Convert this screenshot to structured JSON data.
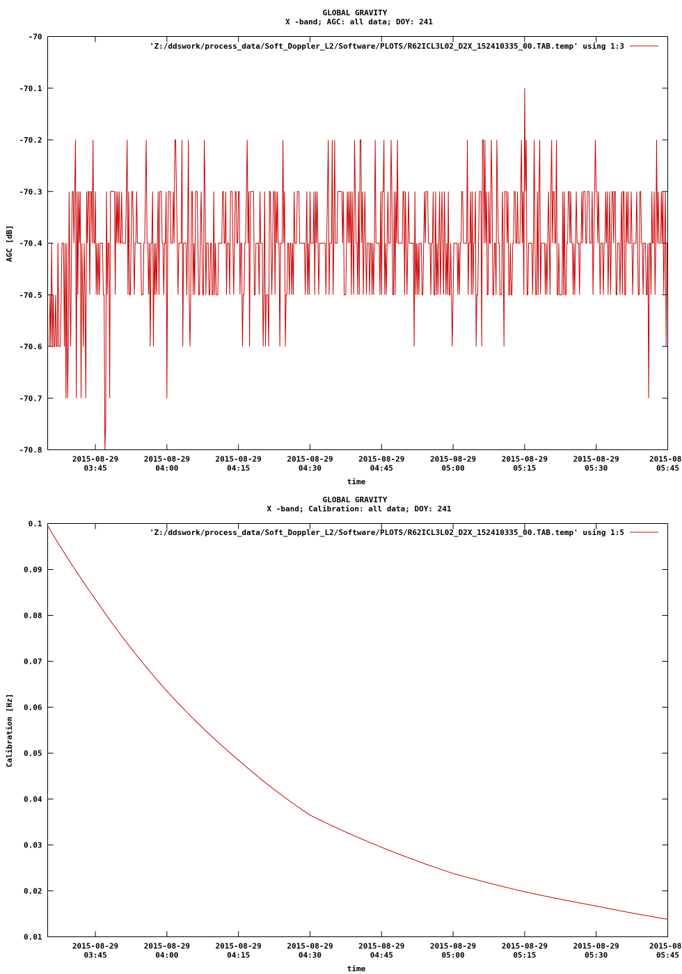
{
  "chart_data": [
    {
      "type": "line",
      "title": "GLOBAL GRAVITY",
      "subtitle": "X -band; AGC: all data; DOY: 241",
      "xlabel": "time",
      "ylabel": "AGC [dB]",
      "ylim": [
        -70.8,
        -70.0
      ],
      "yticks": [
        "-70",
        "-70.1",
        "-70.2",
        "-70.3",
        "-70.4",
        "-70.5",
        "-70.6",
        "-70.7",
        "-70.8"
      ],
      "ytick_values": [
        -70.0,
        -70.1,
        -70.2,
        -70.3,
        -70.4,
        -70.5,
        -70.6,
        -70.7,
        -70.8
      ],
      "xlim": [
        "2015-08-29 03:35",
        "2015-08-29 05:45"
      ],
      "xticks": [
        {
          "value": "03:45",
          "date": "2015-08-29",
          "time": "03:45"
        },
        {
          "value": "04:00",
          "date": "2015-08-29",
          "time": "04:00"
        },
        {
          "value": "04:15",
          "date": "2015-08-29",
          "time": "04:15"
        },
        {
          "value": "04:30",
          "date": "2015-08-29",
          "time": "04:30"
        },
        {
          "value": "04:45",
          "date": "2015-08-29",
          "time": "04:45"
        },
        {
          "value": "05:00",
          "date": "2015-08-29",
          "time": "05:00"
        },
        {
          "value": "05:15",
          "date": "2015-08-29",
          "time": "05:15"
        },
        {
          "value": "05:30",
          "date": "2015-08-29",
          "time": "05:30"
        },
        {
          "value": "05:45",
          "date": "2015-08-",
          "time": "05:45"
        }
      ],
      "legend": "top-right",
      "grid": false,
      "series": [
        {
          "name": "'Z:/ddswork/process_data/Soft_Doppler_L2/Software/PLOTS/R62ICL3L02_D2X_152410335_00.TAB.temp' using 1:3",
          "color": "#cc0000",
          "noise_levels": [
            -70.2,
            -70.3,
            -70.4,
            -70.5,
            -70.6
          ],
          "typical_range": [
            -70.5,
            -70.3
          ],
          "spikes": [
            {
              "x": "03:42",
              "y": -70.7
            },
            {
              "x": "03:43",
              "y": -70.7
            },
            {
              "x": "03:41",
              "y": -70.7
            },
            {
              "x": "03:42.5",
              "y": -70.6
            },
            {
              "x": "03:47",
              "y": -70.8
            },
            {
              "x": "03:47.2",
              "y": -70.75
            },
            {
              "x": "03:48",
              "y": -70.7
            },
            {
              "x": "04:00",
              "y": -70.7
            },
            {
              "x": "05:15",
              "y": -70.1
            },
            {
              "x": "05:41",
              "y": -70.7
            }
          ]
        }
      ]
    },
    {
      "type": "line",
      "title": "GLOBAL GRAVITY",
      "subtitle": "X -band; Calibration: all data; DOY: 241",
      "xlabel": "time",
      "ylabel": "Calibration [Hz]",
      "ylim": [
        0.01,
        0.1
      ],
      "yticks": [
        "0.1",
        "0.09",
        "0.08",
        "0.07",
        "0.06",
        "0.05",
        "0.04",
        "0.03",
        "0.02",
        "0.01"
      ],
      "ytick_values": [
        0.1,
        0.09,
        0.08,
        0.07,
        0.06,
        0.05,
        0.04,
        0.03,
        0.02,
        0.01
      ],
      "xlim": [
        "2015-08-29 03:35",
        "2015-08-29 05:45"
      ],
      "xticks": [
        {
          "value": "03:45",
          "date": "2015-08-29",
          "time": "03:45"
        },
        {
          "value": "04:00",
          "date": "2015-08-29",
          "time": "04:00"
        },
        {
          "value": "04:15",
          "date": "2015-08-29",
          "time": "04:15"
        },
        {
          "value": "04:30",
          "date": "2015-08-29",
          "time": "04:30"
        },
        {
          "value": "04:45",
          "date": "2015-08-29",
          "time": "04:45"
        },
        {
          "value": "05:00",
          "date": "2015-08-29",
          "time": "05:00"
        },
        {
          "value": "05:15",
          "date": "2015-08-29",
          "time": "05:15"
        },
        {
          "value": "05:30",
          "date": "2015-08-29",
          "time": "05:30"
        },
        {
          "value": "05:45",
          "date": "2015-08-",
          "time": "05:45"
        }
      ],
      "legend": "top-right",
      "grid": false,
      "series": [
        {
          "name": "'Z:/ddswork/process_data/Soft_Doppler_L2/Software/PLOTS/R62ICL3L02_D2X_152410335_00.TAB.temp' using 1:5",
          "color": "#cc0000",
          "x": [
            "03:35",
            "03:45",
            "04:00",
            "04:15",
            "04:30",
            "04:45",
            "05:00",
            "05:15",
            "05:30",
            "05:45"
          ],
          "y": [
            0.0995,
            0.0835,
            0.0635,
            0.0485,
            0.0365,
            0.0295,
            0.0238,
            0.0198,
            0.0167,
            0.0138
          ]
        }
      ]
    }
  ]
}
